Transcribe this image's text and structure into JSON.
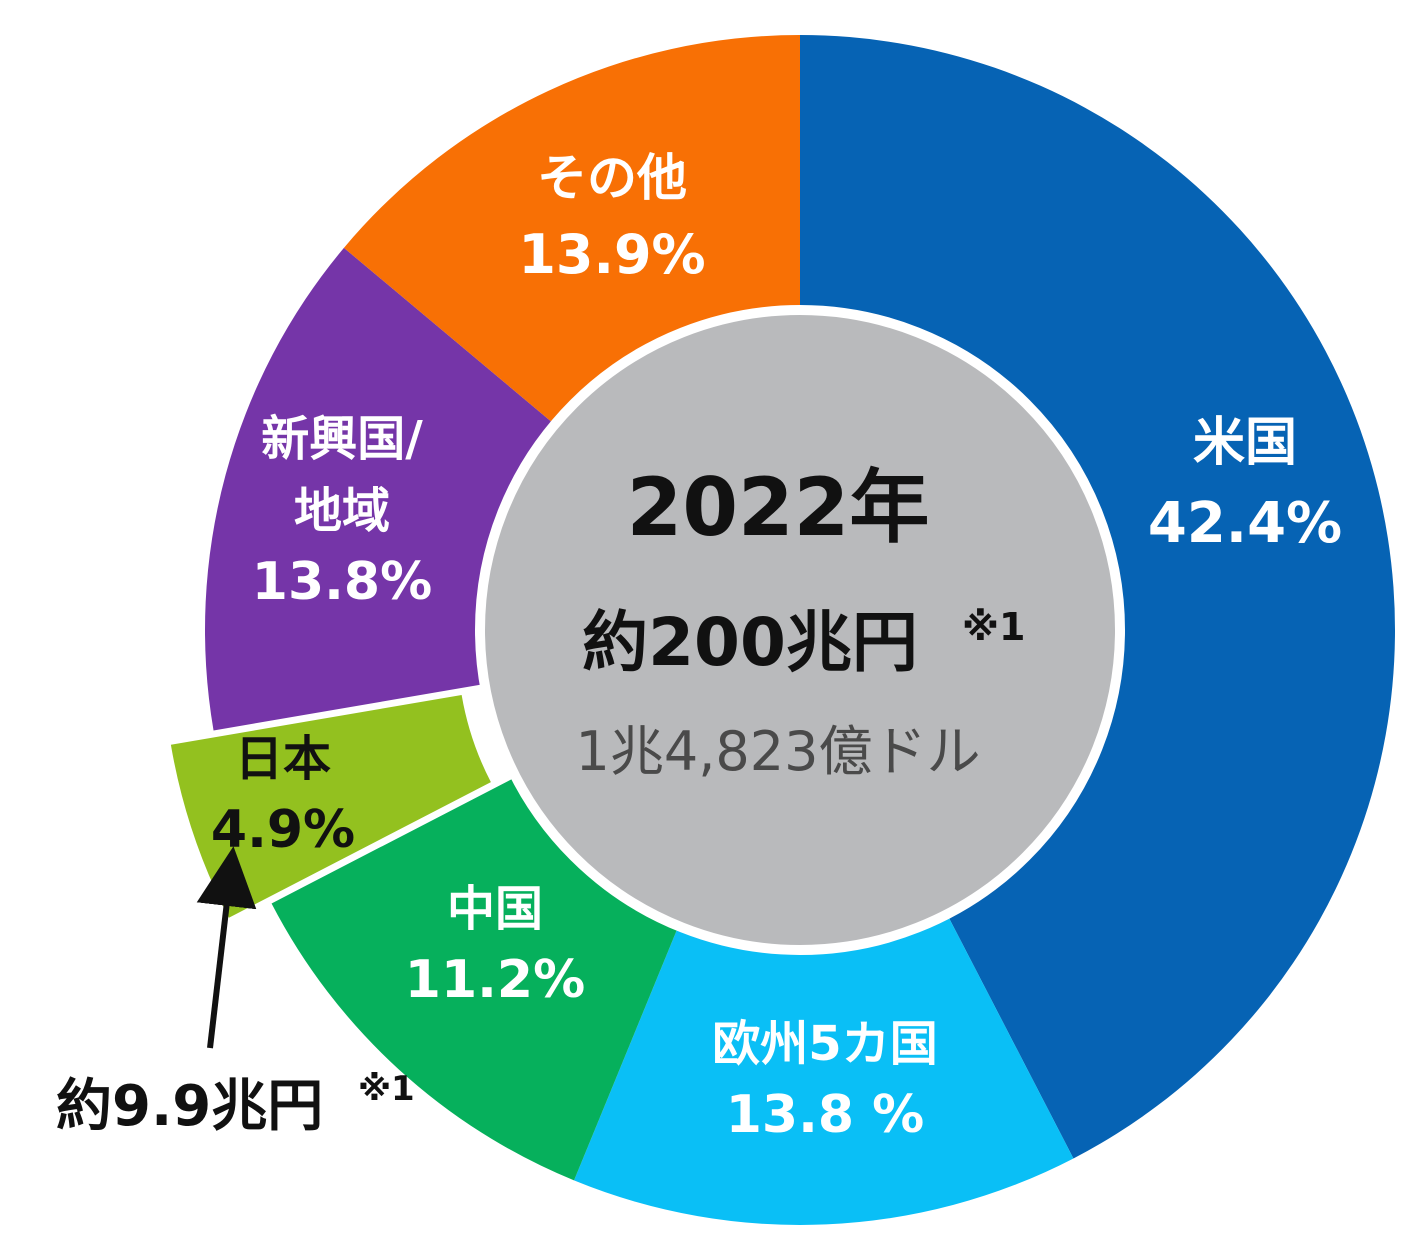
{
  "chart_data": {
    "type": "donut",
    "title": "",
    "segments": [
      {
        "name": "米国",
        "value_label": "42.4%",
        "value": 42.4,
        "color": "#0663b4"
      },
      {
        "name": "欧州5カ国",
        "value_label": "13.8 %",
        "value": 13.8,
        "color": "#0abff6"
      },
      {
        "name": "中国",
        "value_label": "11.2%",
        "value": 11.2,
        "color": "#06b05c"
      },
      {
        "name": "日本",
        "value_label": "4.9%",
        "value": 4.9,
        "color": "#93c11f",
        "exploded": true
      },
      {
        "name": "新興国/地域",
        "value_label": "13.8%",
        "value": 13.8,
        "color": "#7535a8"
      },
      {
        "name": "その他",
        "value_label": "13.9%",
        "value": 13.9,
        "color": "#f87005"
      }
    ],
    "center": {
      "year": "2022年",
      "total": "約200兆円",
      "total_note": "※1",
      "dollars": "1兆4,823億ドル",
      "color": "#b9babc"
    },
    "callout": {
      "text": "約9.9兆円",
      "note": "※1",
      "target": "日本"
    }
  }
}
